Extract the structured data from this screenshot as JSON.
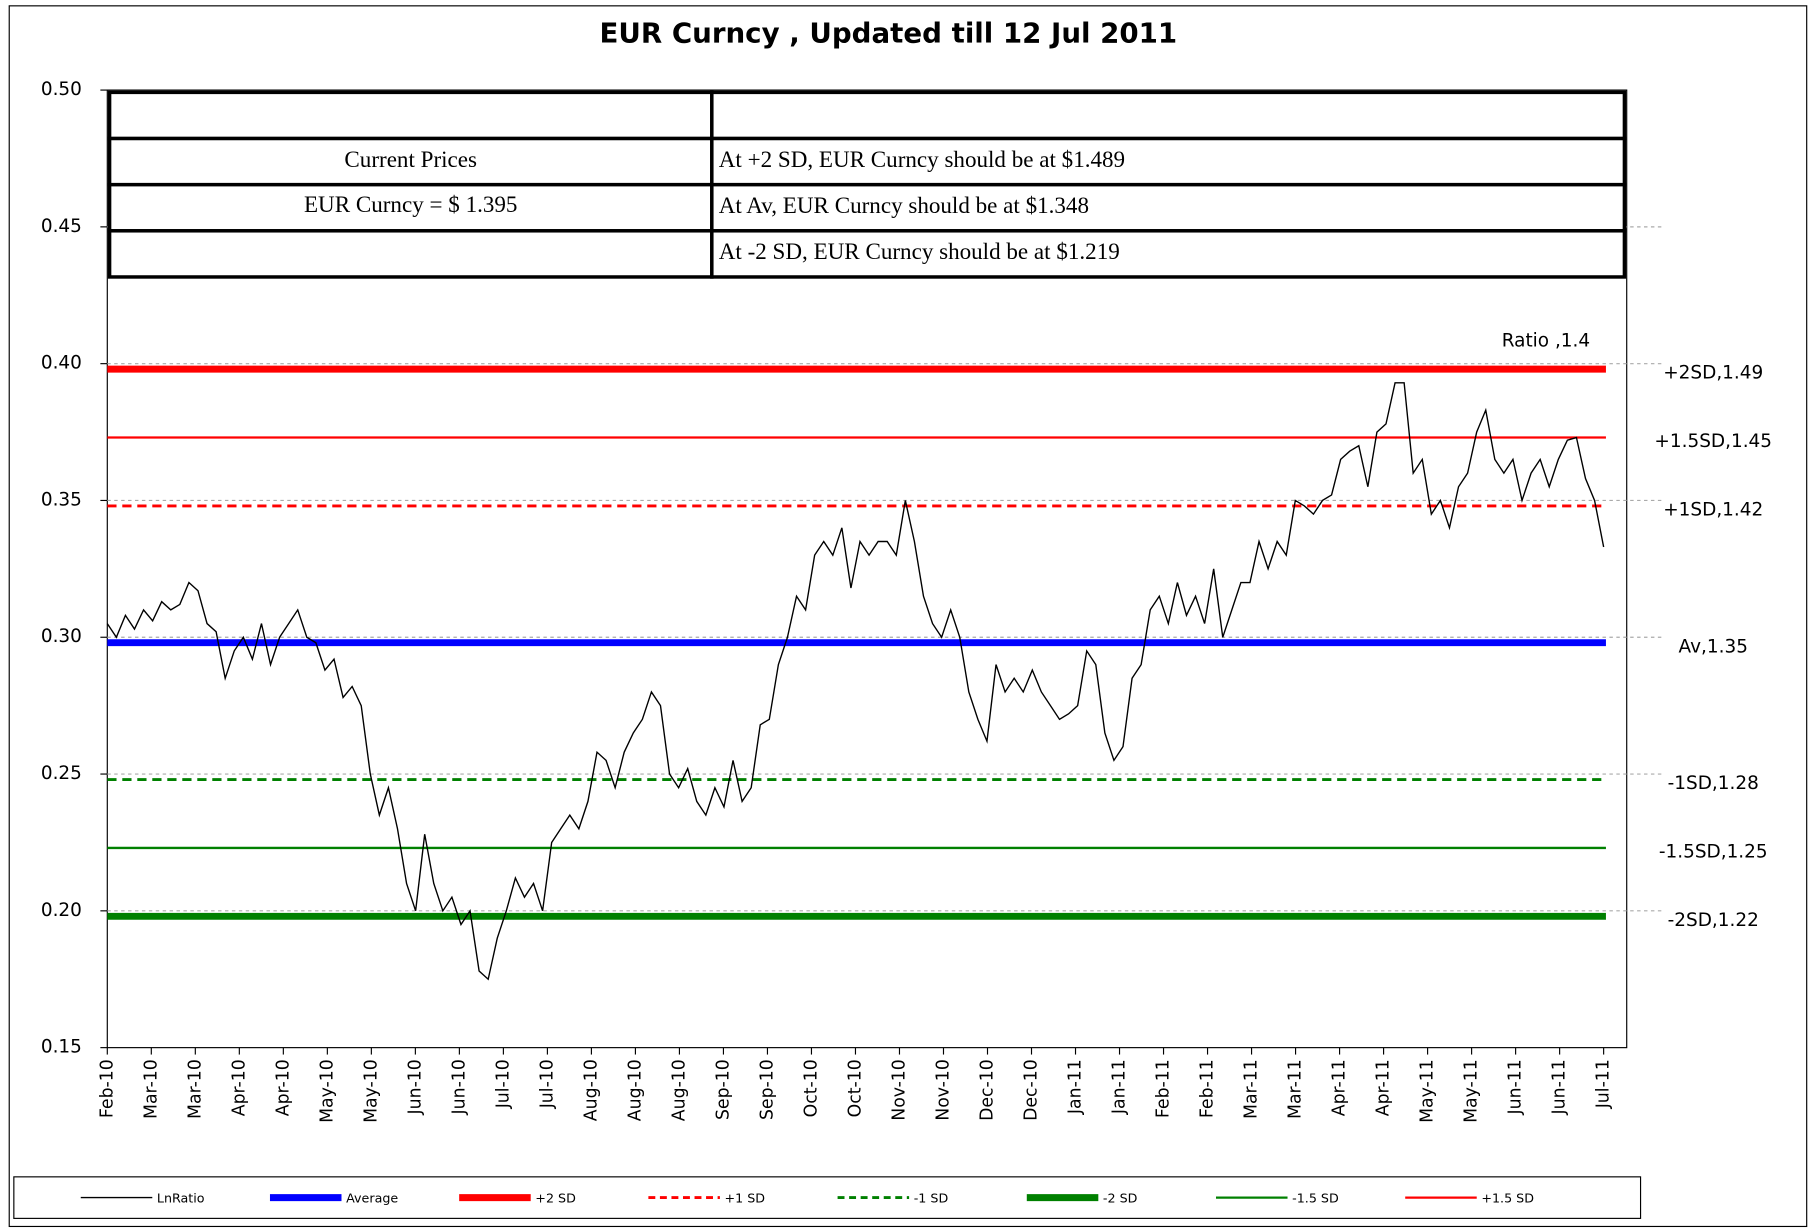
{
  "chart_data": {
    "type": "line",
    "title": "EUR Curncy , Updated till 12 Jul 2011",
    "x_labels": [
      "Feb-10",
      "Mar-10",
      "Mar-10",
      "Apr-10",
      "Apr-10",
      "May-10",
      "May-10",
      "Jun-10",
      "Jun-10",
      "Jul-10",
      "Jul-10",
      "Aug-10",
      "Aug-10",
      "Aug-10",
      "Sep-10",
      "Sep-10",
      "Oct-10",
      "Oct-10",
      "Nov-10",
      "Nov-10",
      "Dec-10",
      "Dec-10",
      "Jan-11",
      "Jan-11",
      "Feb-11",
      "Feb-11",
      "Mar-11",
      "Mar-11",
      "Apr-11",
      "Apr-11",
      "May-11",
      "May-11",
      "Jun-11",
      "Jun-11",
      "Jul-11"
    ],
    "ylim": [
      0.15,
      0.5
    ],
    "yticks": [
      0.15,
      {
        "value": 0.2,
        "label": "0.20"
      },
      0.25,
      {
        "value": 0.3,
        "label": "0.30"
      },
      0.35,
      {
        "value": 0.4,
        "label": "0.40"
      },
      0.45,
      {
        "value": 0.5,
        "label": "0.50"
      }
    ],
    "grid": true,
    "series": [
      {
        "name": "LnRatio",
        "color": "#000000",
        "values": [
          0.305,
          0.3,
          0.308,
          0.303,
          0.31,
          0.306,
          0.313,
          0.31,
          0.312,
          0.32,
          0.317,
          0.305,
          0.302,
          0.285,
          0.295,
          0.3,
          0.292,
          0.305,
          0.29,
          0.3,
          0.305,
          0.31,
          0.3,
          0.298,
          0.288,
          0.292,
          0.278,
          0.282,
          0.275,
          0.25,
          0.235,
          0.245,
          0.23,
          0.21,
          0.2,
          0.228,
          0.21,
          0.2,
          0.205,
          0.195,
          0.2,
          0.178,
          0.175,
          0.19,
          0.2,
          0.212,
          0.205,
          0.21,
          0.2,
          0.225,
          0.23,
          0.235,
          0.23,
          0.24,
          0.258,
          0.255,
          0.245,
          0.258,
          0.265,
          0.27,
          0.28,
          0.275,
          0.25,
          0.245,
          0.252,
          0.24,
          0.235,
          0.245,
          0.238,
          0.255,
          0.24,
          0.245,
          0.268,
          0.27,
          0.29,
          0.3,
          0.315,
          0.31,
          0.33,
          0.335,
          0.33,
          0.34,
          0.318,
          0.335,
          0.33,
          0.335,
          0.335,
          0.33,
          0.35,
          0.335,
          0.315,
          0.305,
          0.3,
          0.31,
          0.3,
          0.28,
          0.27,
          0.262,
          0.29,
          0.28,
          0.285,
          0.28,
          0.288,
          0.28,
          0.275,
          0.27,
          0.272,
          0.275,
          0.295,
          0.29,
          0.265,
          0.255,
          0.26,
          0.285,
          0.29,
          0.31,
          0.315,
          0.305,
          0.32,
          0.308,
          0.315,
          0.305,
          0.325,
          0.3,
          0.31,
          0.32,
          0.32,
          0.335,
          0.325,
          0.335,
          0.33,
          0.35,
          0.348,
          0.345,
          0.35,
          0.352,
          0.365,
          0.368,
          0.37,
          0.355,
          0.375,
          0.378,
          0.393,
          0.393,
          0.36,
          0.365,
          0.345,
          0.35,
          0.34,
          0.355,
          0.36,
          0.375,
          0.383,
          0.365,
          0.36,
          0.365,
          0.35,
          0.36,
          0.365,
          0.355,
          0.365,
          0.372,
          0.373,
          0.358,
          0.35,
          0.333
        ]
      },
      {
        "name": "Average",
        "color": "#0000ff",
        "value": 0.298,
        "width": 6,
        "label": "Av,1.35"
      },
      {
        "name": "+2 SD",
        "color": "#ff0000",
        "value": 0.398,
        "width": 6,
        "label": "+2SD,1.49"
      },
      {
        "name": "+1 SD",
        "color": "#ff0000",
        "value": 0.348,
        "width": 2.5,
        "dash": true,
        "label": "+1SD,1.42"
      },
      {
        "name": "-1 SD",
        "color": "#008000",
        "value": 0.248,
        "width": 2.5,
        "dash": true,
        "label": "-1SD,1.28"
      },
      {
        "name": "-2 SD",
        "color": "#008000",
        "value": 0.198,
        "width": 6,
        "label": "-2SD,1.22"
      },
      {
        "name": "-1.5 SD",
        "color": "#008000",
        "value": 0.223,
        "width": 2,
        "label": "-1.5SD,1.25"
      },
      {
        "name": "+1.5 SD",
        "color": "#ff0000",
        "value": 0.373,
        "width": 2,
        "label": "+1.5SD,1.45"
      }
    ],
    "annotation": "Ratio ,1.4",
    "table": {
      "rows": [
        [
          "",
          ""
        ],
        [
          "Current Prices",
          "At +2 SD, EUR Curncy should be at $1.489"
        ],
        [
          "EUR Curncy =  $ 1.395",
          "At Av, EUR Curncy should be at $1.348"
        ],
        [
          "",
          "At -2 SD, EUR Curncy should be at $1.219"
        ]
      ]
    }
  }
}
